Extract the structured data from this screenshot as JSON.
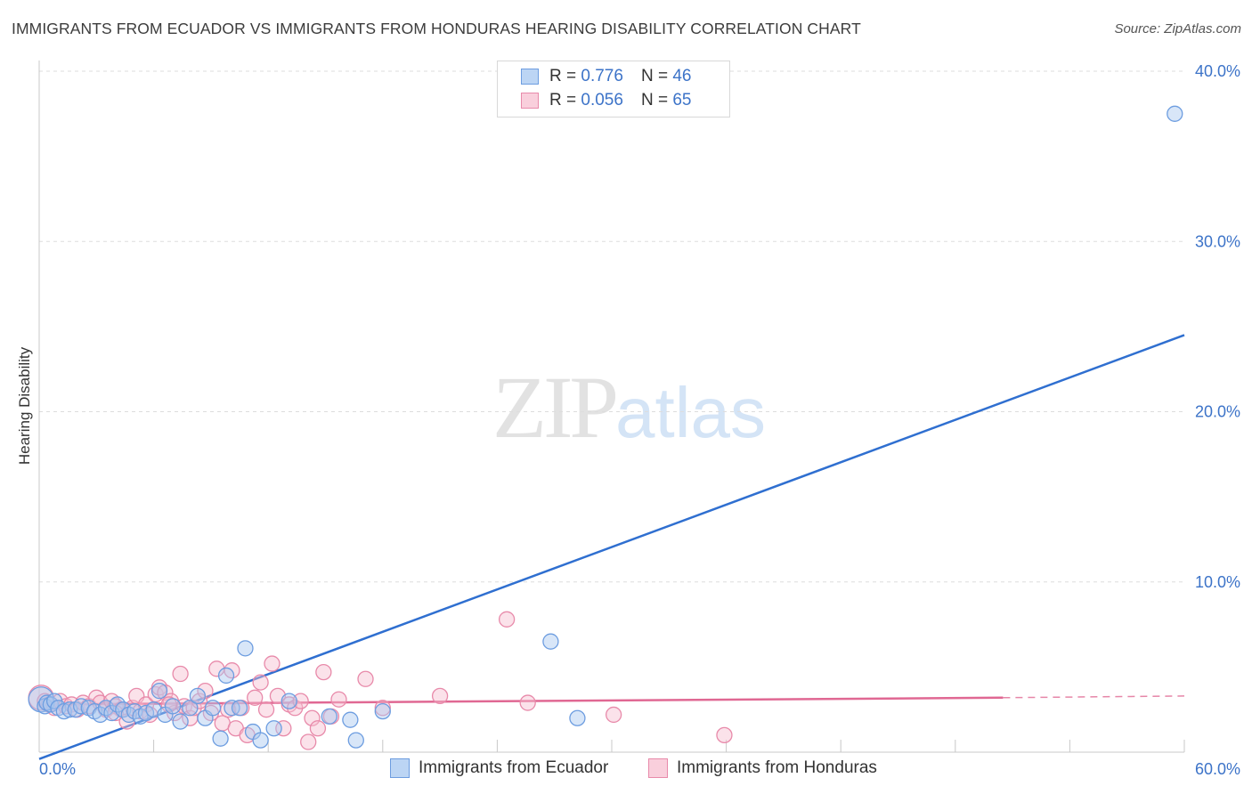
{
  "header": {
    "title": "IMMIGRANTS FROM ECUADOR VS IMMIGRANTS FROM HONDURAS HEARING DISABILITY CORRELATION CHART",
    "source": "Source: ZipAtlas.com"
  },
  "watermark": {
    "zip": "ZIP",
    "atlas": "atlas"
  },
  "stats": {
    "r_label": "R =",
    "n_label": "N =",
    "ecuador": {
      "r": "0.776",
      "n": "46"
    },
    "honduras": {
      "r": "0.056",
      "n": "65"
    }
  },
  "colors": {
    "ecuador_fill": "#a9c8f0",
    "ecuador_stroke": "#6d9de0",
    "ecuador_line": "#2f6fd0",
    "honduras_fill": "#f6bed0",
    "honduras_stroke": "#e88aaa",
    "honduras_line": "#e06893",
    "axis_label": "#3c73c8",
    "grid": "#dddddd"
  },
  "chart_data": {
    "type": "scatter",
    "title": "IMMIGRANTS FROM ECUADOR VS IMMIGRANTS FROM HONDURAS HEARING DISABILITY CORRELATION CHART",
    "xlabel": "",
    "ylabel": "Hearing Disability",
    "xlim": [
      0,
      60
    ],
    "ylim": [
      0,
      40
    ],
    "x_tick_labels": [
      {
        "value": 0,
        "label": "0.0%"
      },
      {
        "value": 60,
        "label": "60.0%"
      }
    ],
    "y_tick_labels": [
      {
        "value": 10,
        "label": "10.0%"
      },
      {
        "value": 20,
        "label": "20.0%"
      },
      {
        "value": 30,
        "label": "30.0%"
      },
      {
        "value": 40,
        "label": "40.0%"
      }
    ],
    "x_gridlines": [
      6,
      12,
      18,
      24,
      30,
      36,
      42,
      48,
      54,
      60
    ],
    "y_gridlines": [
      10,
      20,
      30,
      40
    ],
    "legend_position": "bottom",
    "series": [
      {
        "name": "Immigrants from Ecuador",
        "color": "ecuador",
        "trend": {
          "x1": 0,
          "y1": -0.4,
          "x2": 60,
          "y2": 24.5
        },
        "points": [
          [
            0.1,
            3.1
          ],
          [
            0.3,
            2.7
          ],
          [
            0.4,
            2.9
          ],
          [
            0.6,
            2.8
          ],
          [
            0.8,
            3.0
          ],
          [
            1.0,
            2.6
          ],
          [
            1.3,
            2.4
          ],
          [
            1.6,
            2.5
          ],
          [
            1.9,
            2.5
          ],
          [
            2.2,
            2.7
          ],
          [
            2.6,
            2.6
          ],
          [
            2.9,
            2.4
          ],
          [
            3.2,
            2.2
          ],
          [
            3.5,
            2.6
          ],
          [
            3.8,
            2.3
          ],
          [
            4.1,
            2.8
          ],
          [
            4.4,
            2.5
          ],
          [
            4.7,
            2.2
          ],
          [
            5.0,
            2.4
          ],
          [
            5.3,
            2.1
          ],
          [
            5.6,
            2.3
          ],
          [
            6.0,
            2.5
          ],
          [
            6.3,
            3.6
          ],
          [
            6.6,
            2.2
          ],
          [
            7.0,
            2.7
          ],
          [
            7.4,
            1.8
          ],
          [
            7.9,
            2.6
          ],
          [
            8.3,
            3.3
          ],
          [
            8.7,
            2.0
          ],
          [
            9.1,
            2.6
          ],
          [
            9.5,
            0.8
          ],
          [
            9.8,
            4.5
          ],
          [
            10.1,
            2.6
          ],
          [
            10.5,
            2.6
          ],
          [
            10.8,
            6.1
          ],
          [
            11.2,
            1.2
          ],
          [
            11.6,
            0.7
          ],
          [
            12.3,
            1.4
          ],
          [
            13.1,
            3.0
          ],
          [
            15.2,
            2.1
          ],
          [
            16.3,
            1.9
          ],
          [
            16.6,
            0.7
          ],
          [
            18.0,
            2.4
          ],
          [
            26.8,
            6.5
          ],
          [
            28.2,
            2.0
          ],
          [
            59.5,
            37.5
          ]
        ]
      },
      {
        "name": "Immigrants from Honduras",
        "color": "honduras",
        "trend": {
          "x1": 0,
          "y1": 2.8,
          "x2": 50.5,
          "y2": 3.2
        },
        "trend_dashed": {
          "x1": 50.5,
          "y1": 3.2,
          "x2": 60,
          "y2": 3.3
        },
        "points": [
          [
            0.1,
            3.2
          ],
          [
            0.3,
            3.0
          ],
          [
            0.5,
            2.8
          ],
          [
            0.8,
            2.6
          ],
          [
            1.1,
            3.0
          ],
          [
            1.4,
            2.7
          ],
          [
            1.7,
            2.8
          ],
          [
            2.0,
            2.5
          ],
          [
            2.3,
            2.9
          ],
          [
            2.6,
            2.7
          ],
          [
            3.0,
            3.2
          ],
          [
            3.2,
            2.9
          ],
          [
            3.5,
            2.5
          ],
          [
            3.8,
            3.0
          ],
          [
            4.0,
            2.7
          ],
          [
            4.3,
            2.5
          ],
          [
            4.6,
            1.8
          ],
          [
            4.9,
            2.6
          ],
          [
            5.1,
            3.3
          ],
          [
            5.3,
            2.4
          ],
          [
            5.6,
            2.8
          ],
          [
            5.8,
            2.2
          ],
          [
            6.1,
            3.4
          ],
          [
            6.3,
            3.8
          ],
          [
            6.6,
            3.5
          ],
          [
            6.9,
            3.0
          ],
          [
            7.1,
            2.3
          ],
          [
            7.4,
            4.6
          ],
          [
            7.6,
            2.7
          ],
          [
            7.9,
            2.0
          ],
          [
            8.1,
            2.6
          ],
          [
            8.4,
            3.0
          ],
          [
            8.7,
            3.6
          ],
          [
            9.0,
            2.3
          ],
          [
            9.3,
            4.9
          ],
          [
            9.6,
            1.7
          ],
          [
            9.9,
            2.5
          ],
          [
            10.1,
            4.8
          ],
          [
            10.3,
            1.4
          ],
          [
            10.6,
            2.6
          ],
          [
            10.9,
            1.0
          ],
          [
            11.3,
            3.2
          ],
          [
            11.6,
            4.1
          ],
          [
            11.9,
            2.5
          ],
          [
            12.2,
            5.2
          ],
          [
            12.5,
            3.3
          ],
          [
            12.8,
            1.4
          ],
          [
            13.1,
            2.8
          ],
          [
            13.4,
            2.6
          ],
          [
            13.7,
            3.0
          ],
          [
            14.1,
            0.6
          ],
          [
            14.3,
            2.0
          ],
          [
            14.6,
            1.4
          ],
          [
            14.9,
            4.7
          ],
          [
            15.3,
            2.1
          ],
          [
            15.7,
            3.1
          ],
          [
            17.1,
            4.3
          ],
          [
            18.0,
            2.6
          ],
          [
            21.0,
            3.3
          ],
          [
            24.5,
            7.8
          ],
          [
            25.6,
            2.9
          ],
          [
            30.1,
            2.2
          ],
          [
            35.9,
            1.0
          ],
          [
            4.0,
            2.3
          ],
          [
            6.8,
            2.8
          ]
        ]
      }
    ]
  },
  "bottom_legend": [
    {
      "label": "Immigrants from Ecuador"
    },
    {
      "label": "Immigrants from Honduras"
    }
  ]
}
